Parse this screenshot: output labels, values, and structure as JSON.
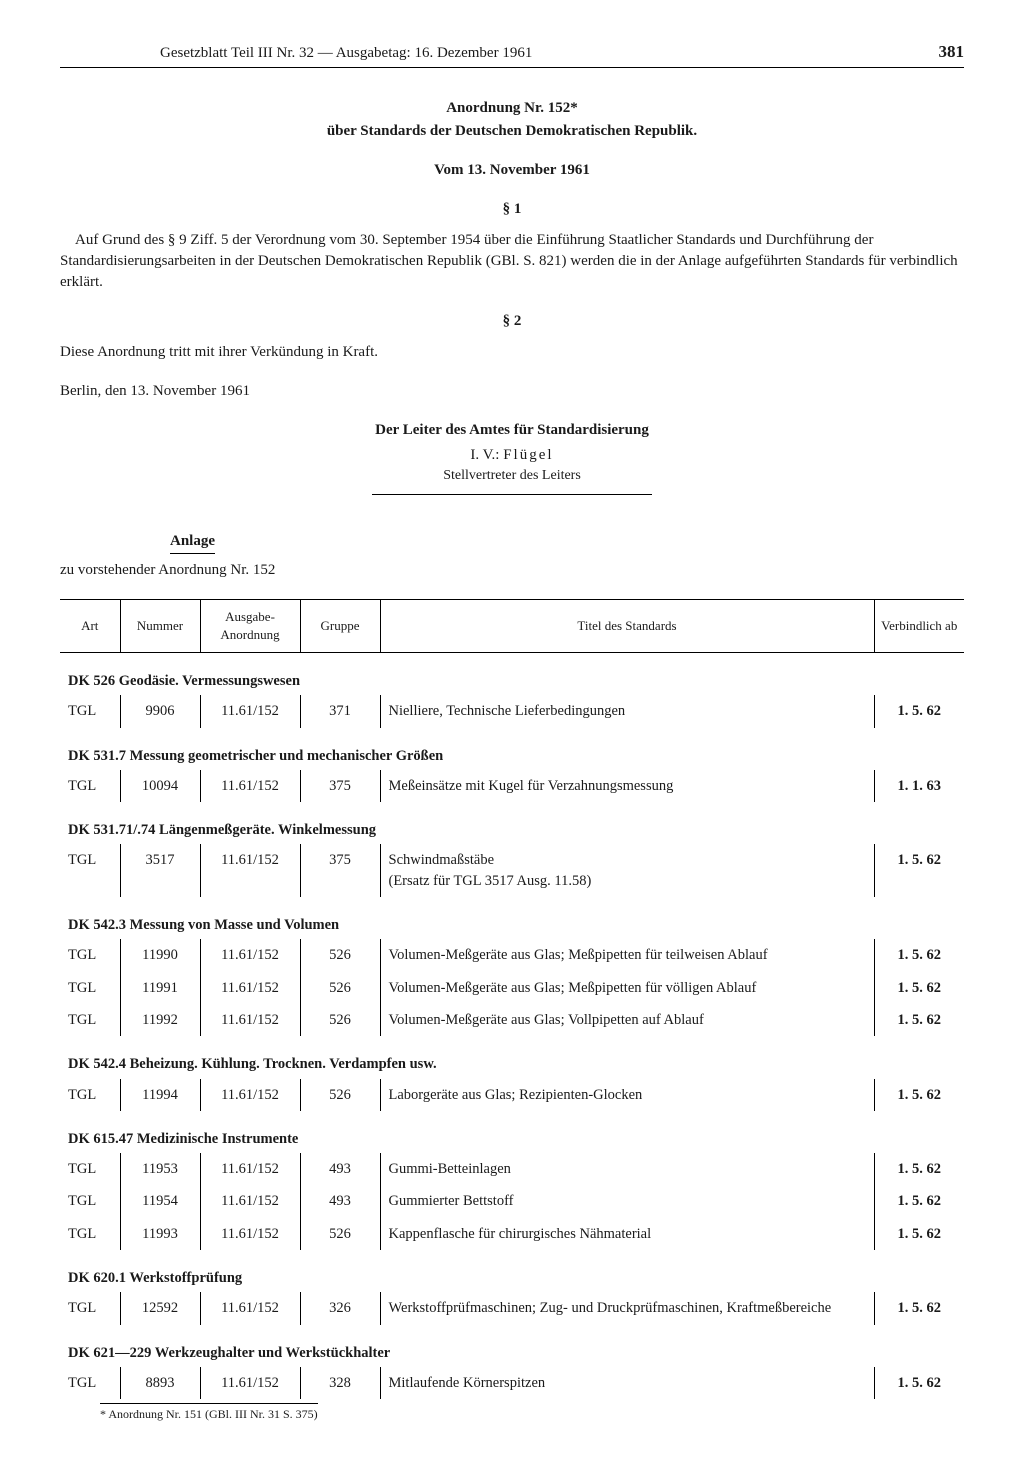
{
  "header": {
    "title": "Gesetzblatt Teil III Nr. 32 — Ausgabetag: 16. Dezember 1961",
    "page_number": "381"
  },
  "ordinance": {
    "title": "Anordnung Nr. 152*",
    "subtitle": "über Standards der Deutschen Demokratischen Republik.",
    "date": "Vom 13. November 1961",
    "section1_label": "§ 1",
    "section1_text": "Auf Grund des § 9 Ziff. 5 der Verordnung vom 30. September 1954 über die Einführung Staatlicher Standards und Durchführung der Standardisierungsarbeiten in der Deutschen Demokratischen Republik (GBl. S. 821) werden die in der Anlage aufgeführten Standards für verbindlich erklärt.",
    "section2_label": "§ 2",
    "section2_text": "Diese Anordnung tritt mit ihrer Verkündung in Kraft.",
    "place_date": "Berlin, den 13. November 1961",
    "signatory_title": "Der Leiter des Amtes für Standardisierung",
    "signatory_prefix": "I. V.: ",
    "signatory_name": "Flügel",
    "signatory_role": "Stellvertreter des Leiters"
  },
  "anlage": {
    "label": "Anlage",
    "subtext": "zu vorstehender Anordnung Nr. 152"
  },
  "table": {
    "columns": {
      "art": "Art",
      "nummer": "Nummer",
      "ausgabe": "Ausgabe-Anordnung",
      "gruppe": "Gruppe",
      "titel": "Titel des Standards",
      "verbindlich": "Verbindlich ab"
    },
    "sections": [
      {
        "heading": "DK 526 Geodäsie. Vermessungswesen",
        "rows": [
          {
            "art": "TGL",
            "num": "9906",
            "ausg": "11.61/152",
            "grp": "371",
            "title": "Nielliere, Technische Lieferbedingungen",
            "date": "1. 5. 62"
          }
        ]
      },
      {
        "heading": "DK 531.7 Messung geometrischer und mechanischer Größen",
        "rows": [
          {
            "art": "TGL",
            "num": "10094",
            "ausg": "11.61/152",
            "grp": "375",
            "title": "Meßeinsätze mit Kugel für Verzahnungsmessung",
            "date": "1. 1. 63"
          }
        ]
      },
      {
        "heading": "DK 531.71/.74 Längenmeßgeräte. Winkelmessung",
        "rows": [
          {
            "art": "TGL",
            "num": "3517",
            "ausg": "11.61/152",
            "grp": "375",
            "title": "Schwindmaßstäbe\n(Ersatz für TGL 3517 Ausg. 11.58)",
            "date": "1. 5. 62"
          }
        ]
      },
      {
        "heading": "DK 542.3 Messung von Masse und Volumen",
        "rows": [
          {
            "art": "TGL",
            "num": "11990",
            "ausg": "11.61/152",
            "grp": "526",
            "title": "Volumen-Meßgeräte aus Glas; Meßpipetten für teilweisen Ablauf",
            "date": "1. 5. 62"
          },
          {
            "art": "TGL",
            "num": "11991",
            "ausg": "11.61/152",
            "grp": "526",
            "title": "Volumen-Meßgeräte aus Glas; Meßpipetten für völligen Ablauf",
            "date": "1. 5. 62"
          },
          {
            "art": "TGL",
            "num": "11992",
            "ausg": "11.61/152",
            "grp": "526",
            "title": "Volumen-Meßgeräte aus Glas; Vollpipetten auf Ablauf",
            "date": "1. 5. 62"
          }
        ]
      },
      {
        "heading": "DK 542.4 Beheizung. Kühlung. Trocknen. Verdampfen usw.",
        "rows": [
          {
            "art": "TGL",
            "num": "11994",
            "ausg": "11.61/152",
            "grp": "526",
            "title": "Laborgeräte aus Glas; Rezipienten-Glocken",
            "date": "1. 5. 62"
          }
        ]
      },
      {
        "heading": "DK 615.47 Medizinische Instrumente",
        "rows": [
          {
            "art": "TGL",
            "num": "11953",
            "ausg": "11.61/152",
            "grp": "493",
            "title": "Gummi-Betteinlagen",
            "date": "1. 5. 62"
          },
          {
            "art": "TGL",
            "num": "11954",
            "ausg": "11.61/152",
            "grp": "493",
            "title": "Gummierter Bettstoff",
            "date": "1. 5. 62"
          },
          {
            "art": "TGL",
            "num": "11993",
            "ausg": "11.61/152",
            "grp": "526",
            "title": "Kappenflasche für chirurgisches Nähmaterial",
            "date": "1. 5. 62"
          }
        ]
      },
      {
        "heading": "DK 620.1 Werkstoffprüfung",
        "rows": [
          {
            "art": "TGL",
            "num": "12592",
            "ausg": "11.61/152",
            "grp": "326",
            "title": "Werkstoffprüfmaschinen; Zug- und Druckprüfmaschinen, Kraftmeßbereiche",
            "date": "1. 5. 62"
          }
        ]
      },
      {
        "heading": "DK 621—229 Werkzeughalter und Werkstückhalter",
        "rows": [
          {
            "art": "TGL",
            "num": "8893",
            "ausg": "11.61/152",
            "grp": "328",
            "title": "Mitlaufende Körnerspitzen",
            "date": "1. 5. 62"
          }
        ]
      }
    ]
  },
  "footnote": "* Anordnung Nr. 151 (GBl. III Nr. 31 S. 375)"
}
